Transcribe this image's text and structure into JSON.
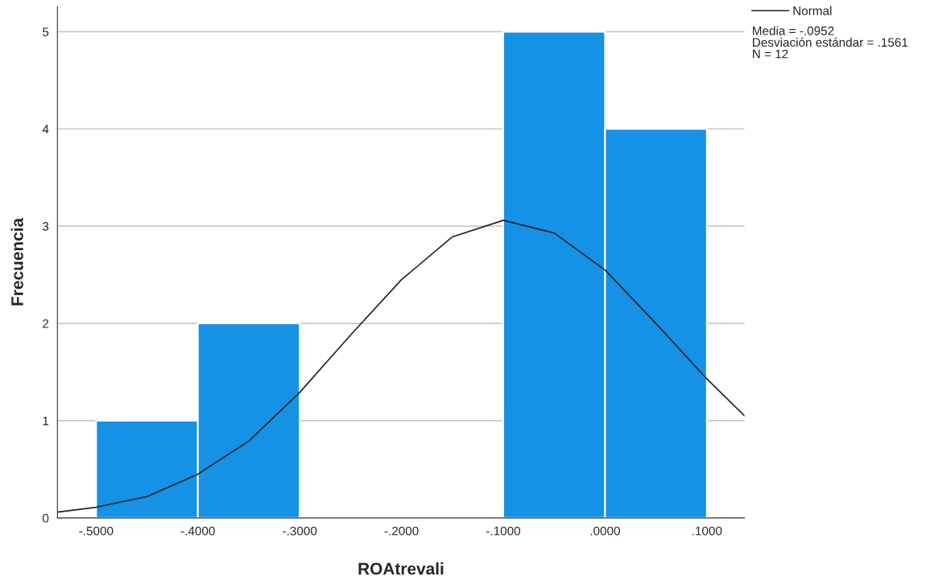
{
  "chart_data": {
    "type": "histogram",
    "bins": [
      -0.5,
      -0.4,
      -0.3,
      -0.2,
      -0.1,
      0.0,
      0.1
    ],
    "values": [
      1,
      2,
      0,
      0,
      5,
      4
    ],
    "color": "#1591e6",
    "series": [
      {
        "name": "Normal",
        "type": "line",
        "color": "#222222",
        "x": [
          -0.538,
          -0.5,
          -0.45,
          -0.4,
          -0.35,
          -0.3,
          -0.25,
          -0.2,
          -0.15,
          -0.1,
          -0.05,
          0.0,
          0.05,
          0.1,
          0.137
        ],
        "values": [
          0.06,
          0.11,
          0.22,
          0.45,
          0.79,
          1.29,
          1.88,
          2.45,
          2.89,
          3.06,
          2.93,
          2.55,
          2.0,
          1.43,
          1.05
        ]
      }
    ],
    "xlabel": "ROAtrevali",
    "ylabel": "Frecuencia",
    "xlim": [
      -0.538,
      0.137
    ],
    "ylim": [
      0,
      5.26
    ],
    "xticks": [
      {
        "value": -0.5,
        "label": "-.5000"
      },
      {
        "value": -0.4,
        "label": "-.4000"
      },
      {
        "value": -0.3,
        "label": "-.3000"
      },
      {
        "value": -0.2,
        "label": "-.2000"
      },
      {
        "value": -0.1,
        "label": "-.1000"
      },
      {
        "value": 0.0,
        "label": ".0000"
      },
      {
        "value": 0.1,
        "label": ".1000"
      }
    ],
    "yticks": [
      0,
      1,
      2,
      3,
      4,
      5
    ],
    "grid": "y",
    "legend": "top right",
    "annotations": [
      "Media = -.0952",
      "Desviación estándar = .1561",
      "N = 12"
    ]
  }
}
